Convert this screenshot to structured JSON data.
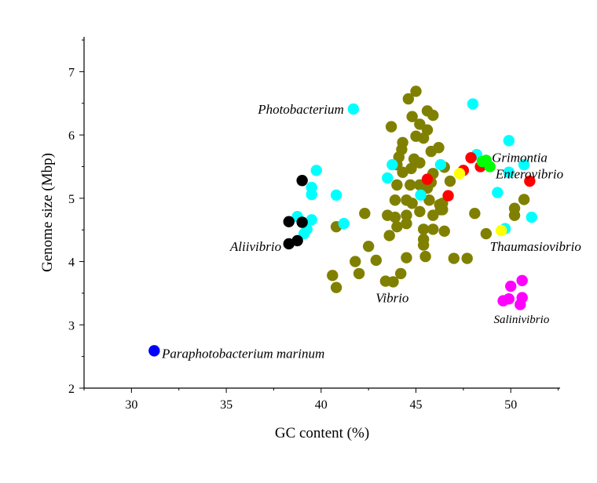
{
  "chart_data": {
    "type": "scatter",
    "title": "",
    "xlabel": "GC content (%)",
    "ylabel": "Genome size (Mbp)",
    "xlim": [
      27.5,
      52.6
    ],
    "ylim": [
      2,
      7.55
    ],
    "xticks": [
      30,
      35,
      40,
      45,
      50
    ],
    "yticks": [
      2,
      3,
      4,
      5,
      6,
      7
    ],
    "grid": false,
    "series": [
      {
        "name": "Vibrio",
        "color": "#808000",
        "points": [
          [
            45.0,
            6.69
          ],
          [
            44.6,
            6.57
          ],
          [
            45.6,
            6.38
          ],
          [
            45.9,
            6.31
          ],
          [
            43.7,
            6.13
          ],
          [
            44.8,
            6.29
          ],
          [
            45.2,
            6.17
          ],
          [
            45.6,
            6.08
          ],
          [
            45.0,
            5.98
          ],
          [
            45.4,
            5.95
          ],
          [
            44.3,
            5.88
          ],
          [
            44.25,
            5.77
          ],
          [
            46.2,
            5.8
          ],
          [
            45.8,
            5.74
          ],
          [
            44.1,
            5.65
          ],
          [
            44.9,
            5.62
          ],
          [
            45.2,
            5.56
          ],
          [
            44.0,
            5.53
          ],
          [
            44.75,
            5.47
          ],
          [
            44.3,
            5.41
          ],
          [
            46.5,
            5.49
          ],
          [
            45.9,
            5.39
          ],
          [
            46.8,
            5.27
          ],
          [
            44.0,
            5.21
          ],
          [
            44.7,
            5.21
          ],
          [
            45.2,
            5.21
          ],
          [
            45.8,
            5.25
          ],
          [
            45.6,
            5.16
          ],
          [
            43.9,
            4.97
          ],
          [
            44.5,
            4.97
          ],
          [
            44.8,
            4.92
          ],
          [
            45.7,
            4.97
          ],
          [
            46.25,
            4.9
          ],
          [
            42.3,
            4.76
          ],
          [
            43.5,
            4.73
          ],
          [
            43.9,
            4.7
          ],
          [
            44.5,
            4.73
          ],
          [
            45.2,
            4.79
          ],
          [
            45.9,
            4.73
          ],
          [
            46.3,
            4.82
          ],
          [
            40.8,
            4.55
          ],
          [
            44.0,
            4.55
          ],
          [
            44.5,
            4.6
          ],
          [
            45.4,
            4.51
          ],
          [
            45.9,
            4.51
          ],
          [
            46.5,
            4.48
          ],
          [
            43.6,
            4.41
          ],
          [
            45.4,
            4.35
          ],
          [
            45.4,
            4.26
          ],
          [
            42.5,
            4.24
          ],
          [
            47.0,
            4.05
          ],
          [
            44.5,
            4.06
          ],
          [
            45.5,
            4.08
          ],
          [
            41.8,
            4.0
          ],
          [
            42.9,
            4.02
          ],
          [
            42.0,
            3.81
          ],
          [
            44.2,
            3.81
          ],
          [
            43.4,
            3.69
          ],
          [
            43.8,
            3.68
          ],
          [
            40.6,
            3.78
          ],
          [
            40.8,
            3.59
          ],
          [
            46.4,
            4.92
          ],
          [
            46.4,
            4.82
          ],
          [
            48.1,
            4.76
          ],
          [
            48.7,
            4.44
          ],
          [
            50.7,
            4.98
          ],
          [
            50.2,
            4.84
          ],
          [
            50.2,
            4.73
          ],
          [
            47.7,
            4.05
          ]
        ]
      },
      {
        "name": "Photobacterium",
        "color": "#00FFFF",
        "points": [
          [
            41.7,
            6.41
          ],
          [
            39.75,
            5.44
          ],
          [
            39.5,
            5.17
          ],
          [
            39.5,
            5.06
          ],
          [
            40.8,
            5.05
          ],
          [
            38.75,
            4.71
          ],
          [
            39.5,
            4.66
          ],
          [
            39.25,
            4.51
          ],
          [
            39.1,
            4.44
          ],
          [
            41.2,
            4.6
          ],
          [
            48.0,
            6.49
          ],
          [
            49.9,
            5.91
          ],
          [
            48.2,
            5.69
          ],
          [
            50.7,
            5.53
          ],
          [
            49.9,
            5.41
          ],
          [
            49.3,
            5.09
          ],
          [
            51.1,
            4.7
          ],
          [
            49.7,
            4.52
          ],
          [
            43.75,
            5.53
          ],
          [
            43.5,
            5.32
          ],
          [
            46.3,
            5.53
          ],
          [
            45.25,
            5.05
          ]
        ]
      },
      {
        "name": "Aliivibrio",
        "color": "#000000",
        "points": [
          [
            39.0,
            5.28
          ],
          [
            38.3,
            4.63
          ],
          [
            39.0,
            4.62
          ],
          [
            38.3,
            4.28
          ],
          [
            38.75,
            4.33
          ]
        ]
      },
      {
        "name": "Enterovibrio",
        "color": "#FF0000",
        "points": [
          [
            47.9,
            5.64
          ],
          [
            47.5,
            5.44
          ],
          [
            48.4,
            5.5
          ],
          [
            51.0,
            5.27
          ],
          [
            46.7,
            5.04
          ],
          [
            45.6,
            5.3
          ]
        ]
      },
      {
        "name": "Thaumasiovibrio",
        "color": "#FFFF00",
        "points": [
          [
            47.3,
            5.39
          ],
          [
            49.5,
            4.49
          ]
        ]
      },
      {
        "name": "Grimontia",
        "color": "#00FF00",
        "points": [
          [
            48.5,
            5.58
          ],
          [
            48.7,
            5.6
          ],
          [
            48.9,
            5.5
          ]
        ]
      },
      {
        "name": "Salinivibrio",
        "color": "#FF00FF",
        "points": [
          [
            50.6,
            3.7
          ],
          [
            50.0,
            3.61
          ],
          [
            50.6,
            3.43
          ],
          [
            49.6,
            3.38
          ],
          [
            50.5,
            3.32
          ],
          [
            49.9,
            3.41
          ]
        ]
      },
      {
        "name": "Paraphotobacterium marinum",
        "color": "#0000FF",
        "points": [
          [
            31.2,
            2.59
          ]
        ]
      }
    ],
    "annotations": [
      {
        "text": "Photobacterium",
        "x": 41.2,
        "y": 6.41,
        "anchor": "end"
      },
      {
        "text": "Grimontia",
        "x": 49.0,
        "y": 5.65,
        "anchor": "start"
      },
      {
        "text": "Enterovibrio",
        "x": 49.2,
        "y": 5.39,
        "anchor": "start"
      },
      {
        "text": "Aliivibrio",
        "x": 37.9,
        "y": 4.24,
        "anchor": "end"
      },
      {
        "text": "Thaumasiovibrio",
        "x": 48.9,
        "y": 4.24,
        "anchor": "start"
      },
      {
        "text": "Vibrio",
        "x": 43.75,
        "y": 3.43,
        "anchor": "middle"
      },
      {
        "text": "Salinivibrio",
        "x": 49.1,
        "y": 3.1,
        "anchor": "start",
        "small": true
      },
      {
        "text": "Paraphotobacterium marinum",
        "x": 31.6,
        "y": 2.55,
        "anchor": "start"
      }
    ]
  }
}
